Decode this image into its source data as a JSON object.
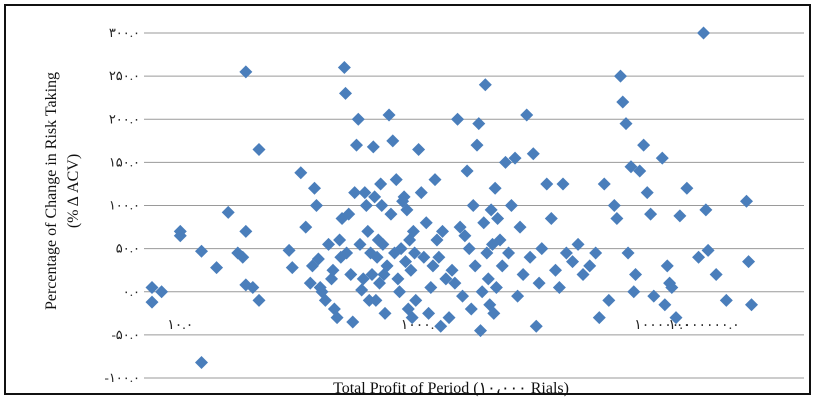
{
  "chart_data": {
    "type": "scatter",
    "title": "",
    "xlabel": "Total Profit of Period (۱۰،۰۰۰ Rials)",
    "ylabel_line1": "Percentage of Change in Risk Taking",
    "ylabel_line2": "(% Δ ACV)",
    "x_scale": "log",
    "xlim": [
      5,
      1500000
    ],
    "ylim": [
      -100,
      300
    ],
    "y_ticks": [
      {
        "value": 300,
        "label": "۳۰۰.۰"
      },
      {
        "value": 250,
        "label": "۲۵۰.۰"
      },
      {
        "value": 200,
        "label": "۲۰۰.۰"
      },
      {
        "value": 150,
        "label": "۱۵۰.۰"
      },
      {
        "value": 100,
        "label": "۱۰۰.۰"
      },
      {
        "value": 50,
        "label": "۵۰.۰"
      },
      {
        "value": 0,
        "label": "۰.۰"
      },
      {
        "value": -50,
        "label": "-۵۰.۰"
      },
      {
        "value": -100,
        "label": "-۱۰۰.۰"
      }
    ],
    "x_ticks": [
      {
        "value": 10,
        "label": "۱۰.۰"
      },
      {
        "value": 1000,
        "label": "۱۰۰۰.۰"
      },
      {
        "value": 100000,
        "label": "۱۰۰۰۰۰.۰"
      },
      {
        "value": 10000000,
        "label": "۱۰۰۰۰۰۰۰.۰"
      }
    ],
    "grid": "horizontal",
    "marker": "diamond",
    "marker_color": "#4A7EBB",
    "points": [
      [
        3.5,
        5
      ],
      [
        4.5,
        -12
      ],
      [
        7,
        0
      ],
      [
        10,
        70
      ],
      [
        10,
        65
      ],
      [
        15,
        -82
      ],
      [
        15,
        47
      ],
      [
        20,
        28
      ],
      [
        25,
        92
      ],
      [
        30,
        45
      ],
      [
        33,
        40
      ],
      [
        35,
        255
      ],
      [
        35,
        70
      ],
      [
        35,
        8
      ],
      [
        40,
        5
      ],
      [
        45,
        165
      ],
      [
        45,
        -10
      ],
      [
        80,
        48
      ],
      [
        85,
        28
      ],
      [
        100,
        138
      ],
      [
        110,
        75
      ],
      [
        120,
        10
      ],
      [
        125,
        30
      ],
      [
        130,
        120
      ],
      [
        135,
        100
      ],
      [
        140,
        38
      ],
      [
        145,
        5
      ],
      [
        150,
        0
      ],
      [
        160,
        -10
      ],
      [
        170,
        55
      ],
      [
        180,
        15
      ],
      [
        185,
        25
      ],
      [
        190,
        -20
      ],
      [
        200,
        -30
      ],
      [
        210,
        60
      ],
      [
        215,
        40
      ],
      [
        220,
        85
      ],
      [
        230,
        260
      ],
      [
        235,
        230
      ],
      [
        240,
        45
      ],
      [
        250,
        90
      ],
      [
        260,
        20
      ],
      [
        270,
        -35
      ],
      [
        280,
        115
      ],
      [
        290,
        170
      ],
      [
        300,
        200
      ],
      [
        310,
        55
      ],
      [
        320,
        2
      ],
      [
        330,
        15
      ],
      [
        340,
        115
      ],
      [
        350,
        100
      ],
      [
        360,
        70
      ],
      [
        370,
        -10
      ],
      [
        380,
        45
      ],
      [
        390,
        20
      ],
      [
        400,
        168
      ],
      [
        410,
        110
      ],
      [
        420,
        -10
      ],
      [
        430,
        40
      ],
      [
        440,
        60
      ],
      [
        450,
        10
      ],
      [
        460,
        125
      ],
      [
        470,
        100
      ],
      [
        480,
        55
      ],
      [
        490,
        20
      ],
      [
        500,
        -25
      ],
      [
        520,
        30
      ],
      [
        540,
        205
      ],
      [
        560,
        90
      ],
      [
        580,
        175
      ],
      [
        600,
        45
      ],
      [
        620,
        130
      ],
      [
        640,
        15
      ],
      [
        660,
        0
      ],
      [
        680,
        50
      ],
      [
        700,
        105
      ],
      [
        720,
        110
      ],
      [
        740,
        35
      ],
      [
        760,
        95
      ],
      [
        780,
        -20
      ],
      [
        800,
        60
      ],
      [
        820,
        25
      ],
      [
        840,
        -30
      ],
      [
        860,
        70
      ],
      [
        880,
        45
      ],
      [
        900,
        -10
      ],
      [
        950,
        165
      ],
      [
        1000,
        115
      ],
      [
        1050,
        40
      ],
      [
        1100,
        80
      ],
      [
        1150,
        -25
      ],
      [
        1200,
        5
      ],
      [
        1250,
        30
      ],
      [
        1300,
        130
      ],
      [
        1350,
        60
      ],
      [
        1400,
        40
      ],
      [
        1450,
        -40
      ],
      [
        1500,
        70
      ],
      [
        1600,
        15
      ],
      [
        1700,
        -30
      ],
      [
        1800,
        25
      ],
      [
        1900,
        10
      ],
      [
        2000,
        200
      ],
      [
        2100,
        75
      ],
      [
        2200,
        -5
      ],
      [
        2300,
        65
      ],
      [
        2400,
        140
      ],
      [
        2500,
        50
      ],
      [
        2600,
        -20
      ],
      [
        2700,
        100
      ],
      [
        2800,
        30
      ],
      [
        2900,
        170
      ],
      [
        3000,
        195
      ],
      [
        3100,
        -45
      ],
      [
        3200,
        0
      ],
      [
        3300,
        80
      ],
      [
        3400,
        240
      ],
      [
        3500,
        45
      ],
      [
        3600,
        15
      ],
      [
        3700,
        -15
      ],
      [
        3800,
        95
      ],
      [
        3900,
        55
      ],
      [
        4000,
        -25
      ],
      [
        4100,
        120
      ],
      [
        4200,
        5
      ],
      [
        4300,
        85
      ],
      [
        4500,
        60
      ],
      [
        4700,
        30
      ],
      [
        5000,
        150
      ],
      [
        5300,
        45
      ],
      [
        5600,
        100
      ],
      [
        6000,
        155
      ],
      [
        6300,
        -5
      ],
      [
        6600,
        75
      ],
      [
        7000,
        20
      ],
      [
        7500,
        205
      ],
      [
        8000,
        40
      ],
      [
        8500,
        160
      ],
      [
        9000,
        -40
      ],
      [
        9500,
        10
      ],
      [
        10000,
        50
      ],
      [
        11000,
        125
      ],
      [
        12000,
        85
      ],
      [
        13000,
        25
      ],
      [
        14000,
        5
      ],
      [
        15000,
        125
      ],
      [
        16000,
        45
      ],
      [
        18000,
        35
      ],
      [
        20000,
        55
      ],
      [
        22000,
        20
      ],
      [
        25000,
        30
      ],
      [
        28000,
        45
      ],
      [
        30000,
        -30
      ],
      [
        33000,
        125
      ],
      [
        36000,
        -10
      ],
      [
        40000,
        100
      ],
      [
        42000,
        85
      ],
      [
        45000,
        250
      ],
      [
        47000,
        220
      ],
      [
        50000,
        195
      ],
      [
        52000,
        45
      ],
      [
        55000,
        145
      ],
      [
        58000,
        0
      ],
      [
        60000,
        20
      ],
      [
        65000,
        140
      ],
      [
        70000,
        170
      ],
      [
        75000,
        115
      ],
      [
        80000,
        90
      ],
      [
        85000,
        -5
      ],
      [
        100000,
        155
      ],
      [
        105000,
        -15
      ],
      [
        110000,
        30
      ],
      [
        115000,
        10
      ],
      [
        120000,
        5
      ],
      [
        130000,
        -30
      ],
      [
        140000,
        88
      ],
      [
        160000,
        120
      ],
      [
        200000,
        40
      ],
      [
        220000,
        300
      ],
      [
        230000,
        95
      ],
      [
        240000,
        48
      ],
      [
        280000,
        20
      ],
      [
        340000,
        -10
      ],
      [
        500000,
        105
      ],
      [
        520000,
        35
      ],
      [
        550000,
        -15
      ]
    ]
  }
}
